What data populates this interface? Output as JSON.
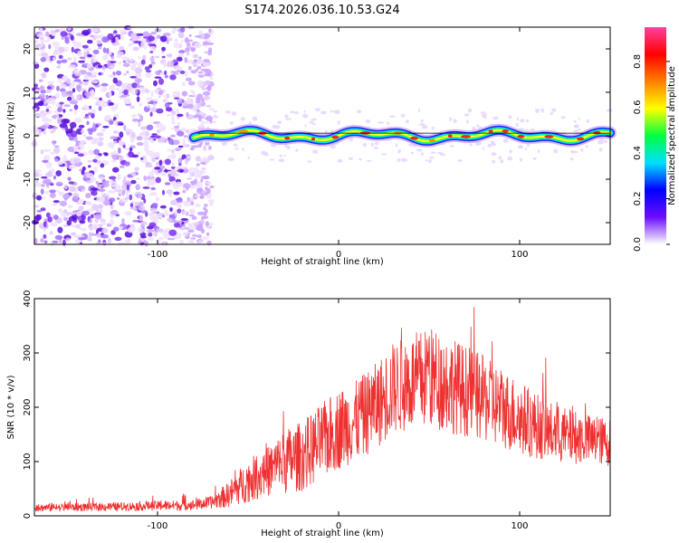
{
  "title": "S174.2026.036.10.53.G24",
  "chart_data": [
    {
      "type": "heatmap",
      "name": "spectrogram",
      "xlabel": "Height of straight line (km)",
      "ylabel": "Frequency (Hz)",
      "xlim": [
        -168,
        150
      ],
      "ylim": [
        -25,
        25
      ],
      "xticks": [
        -100,
        0,
        100
      ],
      "xtick_labels": [
        "-100",
        "0",
        "100"
      ],
      "yticks": [
        -20,
        -10,
        0,
        10,
        20
      ],
      "ytick_labels": [
        "-20",
        "-10",
        "0",
        "10",
        "20"
      ],
      "ridge_frequency": 0,
      "noise_region_x": [
        -168,
        -70
      ],
      "ridge_x": [
        -80,
        150
      ],
      "colorbar": {
        "label": "Normalized spectral amplitude",
        "range": [
          0,
          0.95
        ],
        "ticks": [
          0.0,
          0.2,
          0.4,
          0.6,
          0.8
        ],
        "tick_labels": [
          "0.0",
          "0.2",
          "0.4",
          "0.6",
          "0.8"
        ],
        "colors": [
          "#ffffff",
          "#6a0dff",
          "#0000ff",
          "#00e0ff",
          "#00ff40",
          "#ffff00",
          "#ff8000",
          "#ff0000",
          "#ff40a0"
        ]
      }
    },
    {
      "type": "line",
      "name": "snr",
      "xlabel": "Height of straight line (km)",
      "ylabel": "SNR (10 * v/v)",
      "xlim": [
        -168,
        150
      ],
      "ylim": [
        0,
        400
      ],
      "xticks": [
        -100,
        0,
        100
      ],
      "xtick_labels": [
        "-100",
        "0",
        "100"
      ],
      "yticks": [
        0,
        100,
        200,
        300,
        400
      ],
      "ytick_labels": [
        "0",
        "100",
        "200",
        "300",
        "400"
      ],
      "color": "#ee3030",
      "envelope": {
        "x": [
          -168,
          -120,
          -80,
          -70,
          -60,
          -50,
          -40,
          -30,
          -20,
          -10,
          0,
          10,
          20,
          30,
          40,
          50,
          60,
          70,
          80,
          90,
          100,
          110,
          120,
          130,
          140,
          150
        ],
        "mean": [
          15,
          17,
          20,
          25,
          40,
          65,
          80,
          100,
          110,
          135,
          160,
          175,
          200,
          235,
          245,
          255,
          245,
          230,
          215,
          200,
          180,
          165,
          150,
          145,
          140,
          135
        ],
        "spread": [
          7,
          8,
          10,
          12,
          25,
          40,
          45,
          60,
          65,
          70,
          75,
          75,
          80,
          85,
          90,
          95,
          90,
          85,
          80,
          75,
          70,
          60,
          55,
          50,
          45,
          45
        ]
      }
    }
  ]
}
